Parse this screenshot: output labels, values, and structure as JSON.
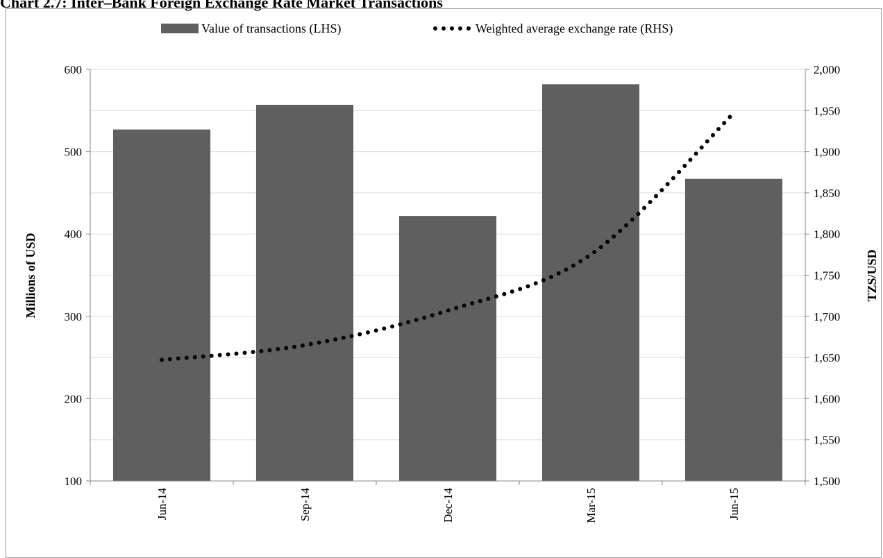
{
  "chart_data": {
    "type": "bar",
    "title": "Chart 2.7: Inter–Bank Foreign Exchange Rate Market Transactions",
    "categories": [
      "Jun-14",
      "Sep-14",
      "Dec-14",
      "Mar-15",
      "Jun-15"
    ],
    "series": [
      {
        "name": "Value of transactions (LHS)",
        "type": "bar",
        "axis": "left",
        "values": [
          527,
          557,
          422,
          582,
          467
        ],
        "color": "#5f5f5f"
      },
      {
        "name": "Weighted average exchange rate (RHS)",
        "type": "line",
        "style": "dotted",
        "axis": "right",
        "values": [
          1647,
          1665,
          1707,
          1775,
          1947
        ],
        "color": "#000000"
      }
    ],
    "ylabel_left": "Millions of  USD",
    "ylabel_right": "TZS/USD",
    "ylim_left": [
      100,
      600
    ],
    "ylim_right": [
      1500,
      2000
    ],
    "yticks_left": [
      "100",
      "200",
      "300",
      "400",
      "500",
      "600"
    ],
    "yticks_right": [
      "1,500",
      "1,550",
      "1,600",
      "1,650",
      "1,700",
      "1,750",
      "1,800",
      "1,850",
      "1,900",
      "1,950",
      "2,000"
    ],
    "grid": true,
    "legend_position": "top-center"
  }
}
